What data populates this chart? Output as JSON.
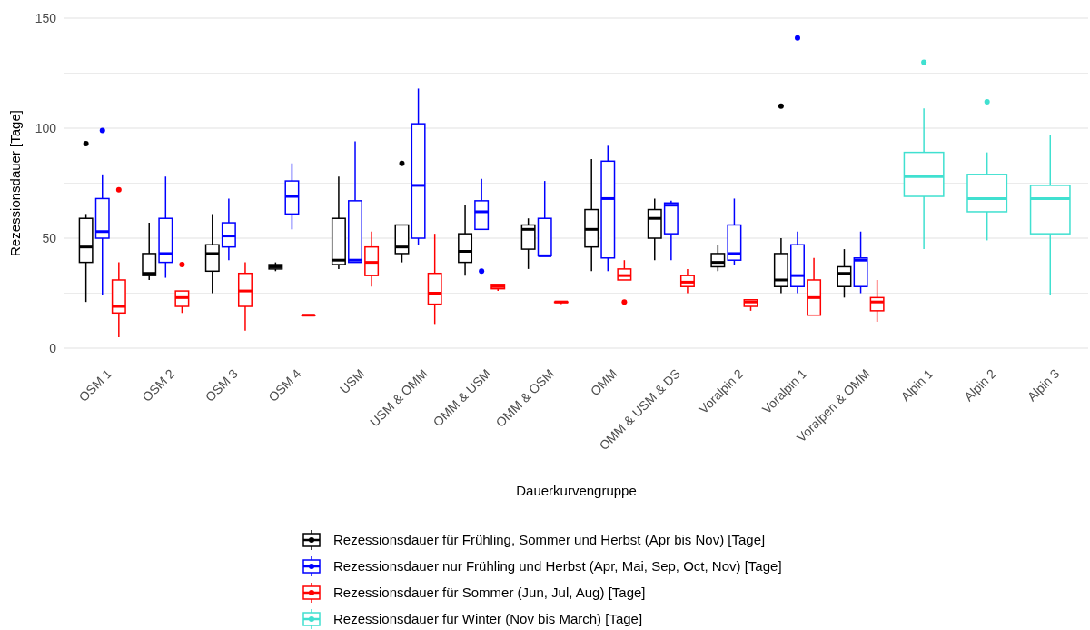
{
  "chart_data": {
    "type": "box",
    "xlabel": "Dauerkurvengruppe",
    "ylabel": "Rezessionsdauer [Tage]",
    "categories": [
      "OSM 1",
      "OSM 2",
      "OSM 3",
      "OSM 4",
      "USM",
      "USM & OMM",
      "OMM & USM",
      "OMM & OSM",
      "OMM",
      "OMM & USM & DS",
      "Voralpin 2",
      "Voralpin 1",
      "Voralpen & OMM",
      "Alpin 1",
      "Alpin 2",
      "Alpin 3"
    ],
    "ylim": [
      0,
      150
    ],
    "yticks": [
      0,
      {
        "value": 25,
        "label": null
      },
      50,
      {
        "value": 75,
        "label": null
      },
      100,
      {
        "value": 125,
        "label": null
      },
      150
    ],
    "grid": "y",
    "legend": "bottom",
    "marker": "circle",
    "series": [
      {
        "name": "Rezessionsdauer für Frühling, Sommer und Herbst (Apr bis Nov) [Tage]",
        "color": "#000000",
        "boxes": [
          {
            "low": 21,
            "q1": 39,
            "median": 46,
            "q3": 59,
            "high": 61,
            "outliers": [
              93
            ]
          },
          {
            "low": 31,
            "q1": 33,
            "median": 34,
            "q3": 43,
            "high": 57
          },
          {
            "low": 25,
            "q1": 35,
            "median": 43,
            "q3": 47,
            "high": 61
          },
          {
            "low": 35,
            "q1": 36,
            "median": 37,
            "q3": 38,
            "high": 39
          },
          {
            "low": 36,
            "q1": 38,
            "median": 40,
            "q3": 59,
            "high": 78
          },
          {
            "low": 39,
            "q1": 43,
            "median": 46,
            "q3": 56,
            "high": 56,
            "outliers": [
              84
            ]
          },
          {
            "low": 33,
            "q1": 39,
            "median": 44,
            "q3": 52,
            "high": 65
          },
          {
            "low": 36,
            "q1": 45,
            "median": 54,
            "q3": 56,
            "high": 59
          },
          {
            "low": 35,
            "q1": 46,
            "median": 54,
            "q3": 63,
            "high": 86
          },
          {
            "low": 40,
            "q1": 50,
            "median": 59,
            "q3": 63,
            "high": 68
          },
          {
            "low": 35,
            "q1": 37,
            "median": 39,
            "q3": 43,
            "high": 47
          },
          {
            "low": 25,
            "q1": 28,
            "median": 31,
            "q3": 43,
            "high": 50,
            "outliers": [
              110
            ]
          },
          {
            "low": 23,
            "q1": 28,
            "median": 34,
            "q3": 37,
            "high": 45
          },
          null,
          null,
          null
        ]
      },
      {
        "name": "Rezessionsdauer nur Frühling und Herbst (Apr, Mai, Sep, Oct, Nov) [Tage]",
        "color": "#0000ff",
        "boxes": [
          {
            "low": 24,
            "q1": 50,
            "median": 53,
            "q3": 68,
            "high": 79,
            "outliers": [
              99
            ]
          },
          {
            "low": 32,
            "q1": 39,
            "median": 43,
            "q3": 59,
            "high": 78
          },
          {
            "low": 40,
            "q1": 46,
            "median": 51,
            "q3": 57,
            "high": 68
          },
          {
            "low": 54,
            "q1": 61,
            "median": 69,
            "q3": 76,
            "high": 84
          },
          {
            "low": 39,
            "q1": 39,
            "median": 40,
            "q3": 67,
            "high": 94
          },
          {
            "low": 47,
            "q1": 50,
            "median": 74,
            "q3": 102,
            "high": 118
          },
          {
            "low": 54,
            "q1": 54,
            "median": 62,
            "q3": 67,
            "high": 77,
            "outliers": [
              35
            ]
          },
          {
            "low": 42,
            "q1": 42,
            "median": 42,
            "q3": 59,
            "high": 76
          },
          {
            "low": 35,
            "q1": 41,
            "median": 68,
            "q3": 85,
            "high": 92
          },
          {
            "low": 40,
            "q1": 52,
            "median": 65,
            "q3": 66,
            "high": 67
          },
          {
            "low": 38,
            "q1": 40,
            "median": 43,
            "q3": 56,
            "high": 68
          },
          {
            "low": 25,
            "q1": 28,
            "median": 33,
            "q3": 47,
            "high": 53,
            "outliers": [
              141
            ]
          },
          {
            "low": 25,
            "q1": 28,
            "median": 40,
            "q3": 41,
            "high": 53
          },
          null,
          null,
          null
        ]
      },
      {
        "name": "Rezessionsdauer für Sommer (Jun, Jul, Aug) [Tage]",
        "color": "#ff0000",
        "boxes": [
          {
            "low": 5,
            "q1": 16,
            "median": 19,
            "q3": 31,
            "high": 39,
            "outliers": [
              72
            ]
          },
          {
            "low": 16,
            "q1": 19,
            "median": 23,
            "q3": 26,
            "high": 26,
            "outliers": [
              38
            ]
          },
          {
            "low": 8,
            "q1": 19,
            "median": 26,
            "q3": 34,
            "high": 39
          },
          {
            "low": 15,
            "q1": 15,
            "median": 15,
            "q3": 15,
            "high": 15
          },
          {
            "low": 28,
            "q1": 33,
            "median": 39,
            "q3": 46,
            "high": 53
          },
          {
            "low": 11,
            "q1": 20,
            "median": 25,
            "q3": 34,
            "high": 52
          },
          {
            "low": 26,
            "q1": 27,
            "median": 28,
            "q3": 29,
            "high": 29
          },
          {
            "low": 20,
            "q1": 21,
            "median": 21,
            "q3": 21,
            "high": 21
          },
          {
            "low": 31,
            "q1": 31,
            "median": 33,
            "q3": 36,
            "high": 40,
            "outliers": [
              21
            ]
          },
          {
            "low": 25,
            "q1": 28,
            "median": 30,
            "q3": 33,
            "high": 36
          },
          {
            "low": 17,
            "q1": 19,
            "median": 21,
            "q3": 22,
            "high": 22
          },
          {
            "low": 15,
            "q1": 15,
            "median": 23,
            "q3": 31,
            "high": 41
          },
          {
            "low": 12,
            "q1": 17,
            "median": 21,
            "q3": 23,
            "high": 31
          },
          null,
          null,
          null
        ]
      },
      {
        "name": "Rezessionsdauer für Winter (Nov bis March) [Tage]",
        "color": "#40e0d0",
        "boxes": [
          null,
          null,
          null,
          null,
          null,
          null,
          null,
          null,
          null,
          null,
          null,
          null,
          null,
          {
            "low": 45,
            "q1": 69,
            "median": 78,
            "q3": 89,
            "high": 109,
            "outliers": [
              130
            ]
          },
          {
            "low": 49,
            "q1": 62,
            "median": 68,
            "q3": 79,
            "high": 89,
            "outliers": [
              112
            ]
          },
          {
            "low": 24,
            "q1": 52,
            "median": 68,
            "q3": 74,
            "high": 97
          }
        ]
      }
    ]
  }
}
